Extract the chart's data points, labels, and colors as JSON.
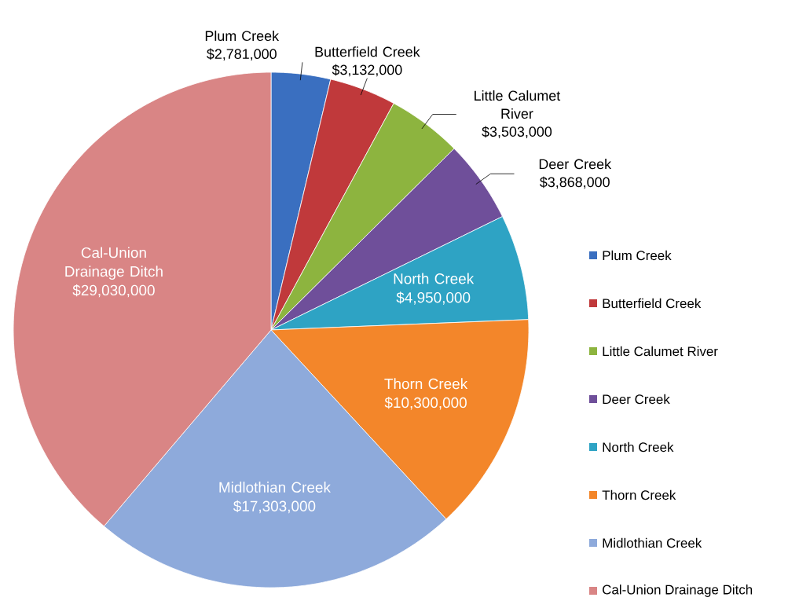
{
  "chart_data": {
    "type": "pie",
    "categories": [
      "Plum Creek",
      "Butterfield Creek",
      "Little Calumet River",
      "Deer Creek",
      "North Creek",
      "Thorn Creek",
      "Midlothian Creek",
      "Cal-Union Drainage Ditch"
    ],
    "values": [
      2781000,
      3132000,
      3503000,
      3868000,
      4950000,
      10300000,
      17303000,
      29030000
    ],
    "value_labels": [
      "$2,781,000",
      "$3,132,000",
      "$3,503,000",
      "$3,868,000",
      "$4,950,000",
      "$10,300,000",
      "$17,303,000",
      "$29,030,000"
    ],
    "colors": [
      "#3a6fc0",
      "#c0393b",
      "#8db43f",
      "#6f4f9a",
      "#2ea3c4",
      "#f3862a",
      "#8eaadb",
      "#d98585"
    ],
    "legend": "right"
  }
}
